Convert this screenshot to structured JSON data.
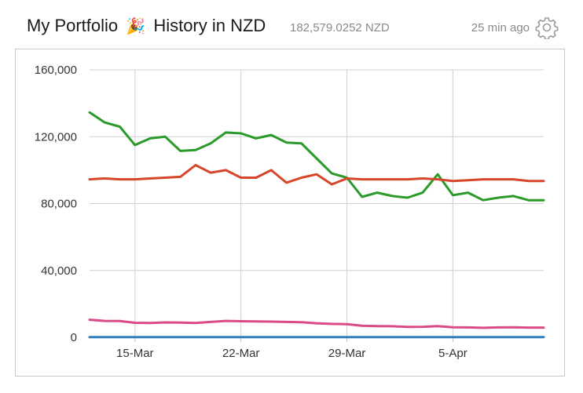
{
  "header": {
    "title_prefix": "My Portfolio",
    "title_suffix": "History in NZD",
    "total_value": "182,579.0252 NZD",
    "updated": "25 min ago",
    "icons": {
      "separator": "party-popper-icon",
      "settings": "gear-icon"
    }
  },
  "chart_data": {
    "type": "line",
    "x": [
      "2025-03-12",
      "2025-03-13",
      "2025-03-14",
      "2025-03-15",
      "2025-03-16",
      "2025-03-17",
      "2025-03-18",
      "2025-03-19",
      "2025-03-20",
      "2025-03-21",
      "2025-03-22",
      "2025-03-23",
      "2025-03-24",
      "2025-03-25",
      "2025-03-26",
      "2025-03-27",
      "2025-03-28",
      "2025-03-29",
      "2025-03-30",
      "2025-03-31",
      "2025-04-01",
      "2025-04-02",
      "2025-04-03",
      "2025-04-04",
      "2025-04-05",
      "2025-04-06",
      "2025-04-07",
      "2025-04-08",
      "2025-04-09",
      "2025-04-10",
      "2025-04-11"
    ],
    "x_tick_labels": [
      {
        "x": "2025-03-15",
        "label": "15-Mar"
      },
      {
        "x": "2025-03-22",
        "label": "22-Mar"
      },
      {
        "x": "2025-03-29",
        "label": "29-Mar"
      },
      {
        "x": "2025-04-05",
        "label": "5-Apr"
      }
    ],
    "y_ticks": [
      0,
      40000,
      80000,
      120000,
      160000
    ],
    "y_tick_labels": [
      "0",
      "40,000",
      "80,000",
      "120,000",
      "160,000"
    ],
    "ylim": [
      0,
      160000
    ],
    "grid": true,
    "series": [
      {
        "color": "#2a9a2a",
        "values": [
          134500,
          128500,
          126000,
          115000,
          119000,
          120000,
          111500,
          112000,
          116000,
          122500,
          122000,
          119000,
          121000,
          116500,
          116000,
          107000,
          98000,
          95500,
          84000,
          86500,
          84500,
          83500,
          86500,
          97500,
          85000,
          86500,
          82000,
          83500,
          84500,
          82000,
          82000
        ]
      },
      {
        "color": "#d7462a",
        "values": [
          94500,
          95000,
          94500,
          94500,
          95000,
          95500,
          96000,
          103000,
          98500,
          100000,
          95500,
          95500,
          100000,
          92500,
          95500,
          97500,
          91500,
          95000,
          94500,
          94500,
          94500,
          94500,
          95000,
          94500,
          93500,
          94000,
          94500,
          94500,
          94500,
          93500,
          93500
        ]
      },
      {
        "color": "#d94a86",
        "values": [
          10500,
          9800,
          9700,
          8700,
          8600,
          8900,
          8800,
          8600,
          9200,
          9800,
          9600,
          9500,
          9400,
          9200,
          9000,
          8400,
          8000,
          7900,
          6900,
          6700,
          6600,
          6200,
          6300,
          6700,
          6000,
          5900,
          5700,
          5900,
          6000,
          5800,
          5800
        ]
      },
      {
        "color": "#2d7fc0",
        "values": [
          150,
          150,
          150,
          150,
          150,
          150,
          150,
          150,
          150,
          150,
          150,
          150,
          150,
          150,
          150,
          150,
          150,
          150,
          150,
          150,
          150,
          150,
          150,
          150,
          150,
          150,
          150,
          150,
          150,
          150,
          150
        ]
      }
    ]
  }
}
